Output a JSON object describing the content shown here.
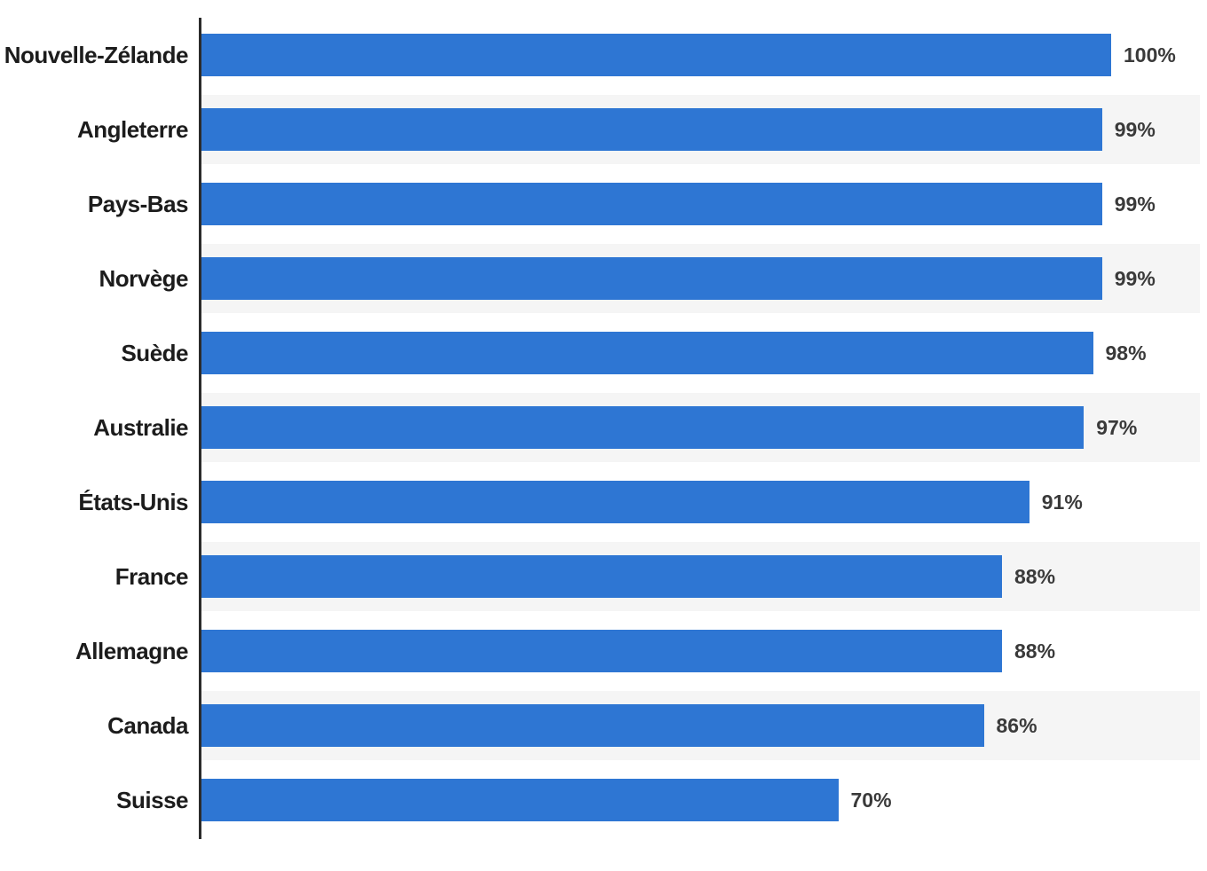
{
  "chart_data": {
    "type": "bar",
    "orientation": "horizontal",
    "title": "",
    "xlabel": "",
    "ylabel": "",
    "xlim": [
      0,
      100
    ],
    "grid": false,
    "legend": false,
    "categories": [
      "Nouvelle-Zélande",
      "Angleterre",
      "Pays-Bas",
      "Norvège",
      "Suède",
      "Australie",
      "États-Unis",
      "France",
      "Allemagne",
      "Canada",
      "Suisse"
    ],
    "values": [
      100,
      99,
      99,
      99,
      98,
      97,
      91,
      88,
      88,
      86,
      70
    ],
    "value_labels": [
      "100%",
      "99%",
      "99%",
      "99%",
      "98%",
      "97%",
      "91%",
      "88%",
      "88%",
      "86%",
      "70%"
    ],
    "bar_color": "#2e76d3",
    "stripe_color": "#f5f5f5",
    "axis_color": "#2b2b2b",
    "category_label_color": "#1c1c1c",
    "value_label_color": "#3a3a3a",
    "striped_row_indexes": [
      1,
      3,
      5,
      7,
      9
    ]
  }
}
